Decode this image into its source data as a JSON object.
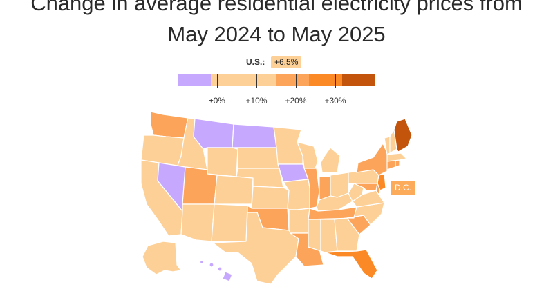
{
  "title": {
    "line1": "Change in average residential electricity prices from",
    "line2": "May 2024 to May 2025"
  },
  "us_average": {
    "label": "U.S.:",
    "value": "+6.5%"
  },
  "legend": {
    "bins": [
      {
        "color": "#c7a8ff"
      },
      {
        "color": "#fdd097"
      },
      {
        "color": "#fdd097"
      },
      {
        "color": "#fca45a"
      },
      {
        "color": "#fb8a26"
      },
      {
        "color": "#c2540b"
      }
    ],
    "ticks": [
      "±0%",
      "+10%",
      "+20%",
      "+30%"
    ]
  },
  "colors": {
    "decrease": "#c7a8ff",
    "zero_to_10": "#fdd097",
    "ten_to_20": "#fca45a",
    "twenty_to_30": "#fb8a26",
    "over_30": "#c2540b"
  },
  "dc": {
    "label": "D.C.",
    "color": "#fcab5b"
  }
}
